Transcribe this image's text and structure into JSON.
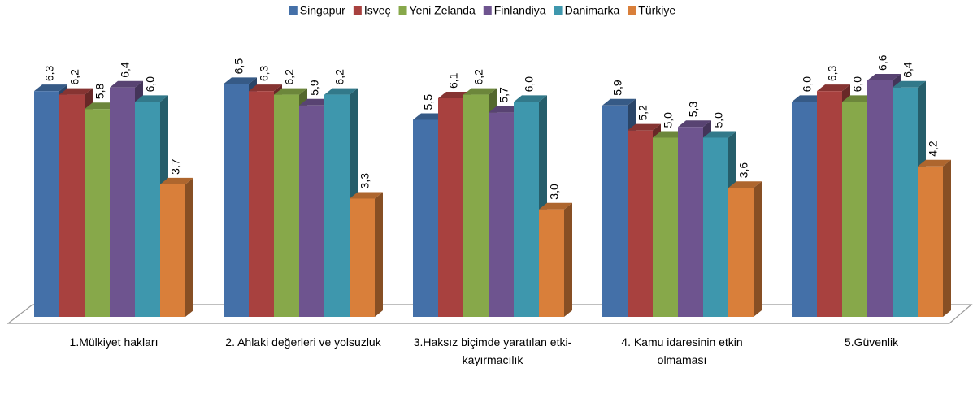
{
  "chart_data": {
    "type": "bar3d",
    "categories": [
      "1.Mülkiyet hakları",
      "2. Ahlaki değerleri ve yolsuzluk",
      "3.Haksız biçimde yaratılan etki-kayırmacılık",
      "4. Kamu idaresinin etkin olmaması",
      "5.Güvenlik"
    ],
    "legend": "top",
    "series": [
      {
        "name": "Singapur",
        "color": "#4470a8",
        "values": [
          6.3,
          6.5,
          5.5,
          5.9,
          6.0
        ],
        "value_labels": [
          "6,3",
          "6,5",
          "5,5",
          "5,9",
          "6,0"
        ]
      },
      {
        "name": "Isveç",
        "color": "#a8413f",
        "values": [
          6.2,
          6.3,
          6.1,
          5.2,
          6.3
        ],
        "value_labels": [
          "6,2",
          "6,3",
          "6,1",
          "5,2",
          "6,3"
        ]
      },
      {
        "name": "Yeni Zelanda",
        "color": "#87a84a",
        "values": [
          5.8,
          6.2,
          6.2,
          5.0,
          6.0
        ],
        "value_labels": [
          "5,8",
          "6,2",
          "6,2",
          "5,0",
          "6,0"
        ]
      },
      {
        "name": "Finlandiya",
        "color": "#6e548f",
        "values": [
          6.4,
          5.9,
          5.7,
          5.3,
          6.6
        ],
        "value_labels": [
          "6,4",
          "5,9",
          "5,7",
          "5,3",
          "6,6"
        ]
      },
      {
        "name": "Danimarka",
        "color": "#3e97ad",
        "values": [
          6.0,
          6.2,
          6.0,
          5.0,
          6.4
        ],
        "value_labels": [
          "6,0",
          "6,2",
          "6,0",
          "5,0",
          "6,4"
        ]
      },
      {
        "name": "Türkiye",
        "color": "#d97f3a",
        "values": [
          3.7,
          3.3,
          3.0,
          3.6,
          4.2
        ],
        "value_labels": [
          "3,7",
          "3,3",
          "3,0",
          "3,6",
          "4,2"
        ]
      }
    ]
  }
}
